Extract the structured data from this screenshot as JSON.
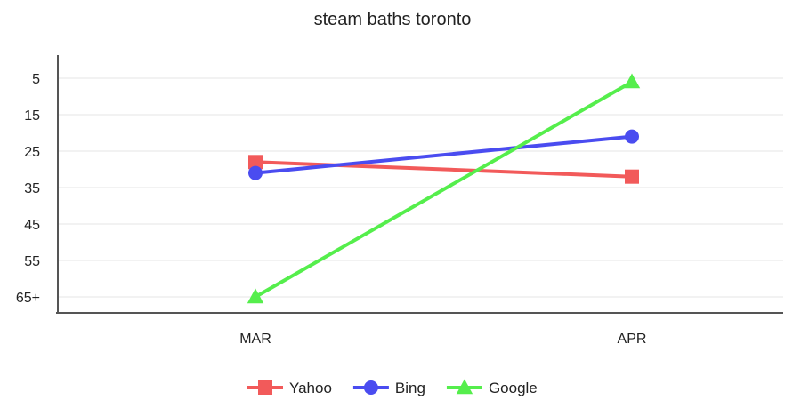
{
  "chart_data": {
    "type": "line",
    "title": "steam baths toronto",
    "xlabel": "",
    "ylabel": "",
    "categories": [
      "MAR",
      "APR"
    ],
    "y_ticks": [
      {
        "label": "5",
        "value": 5
      },
      {
        "label": "15",
        "value": 15
      },
      {
        "label": "25",
        "value": 25
      },
      {
        "label": "35",
        "value": 35
      },
      {
        "label": "45",
        "value": 45
      },
      {
        "label": "55",
        "value": 55
      },
      {
        "label": "65+",
        "value": 65
      }
    ],
    "ylim": [
      0,
      68
    ],
    "y_inverted": true,
    "grid": true,
    "legend_position": "bottom",
    "series": [
      {
        "name": "Yahoo",
        "values": [
          28,
          32
        ],
        "color": "#f25a5a",
        "marker": "square"
      },
      {
        "name": "Bing",
        "values": [
          31,
          21
        ],
        "color": "#4a4cf0",
        "marker": "circle"
      },
      {
        "name": "Google",
        "values": [
          65,
          6
        ],
        "color": "#55ee4c",
        "marker": "triangle"
      }
    ]
  }
}
